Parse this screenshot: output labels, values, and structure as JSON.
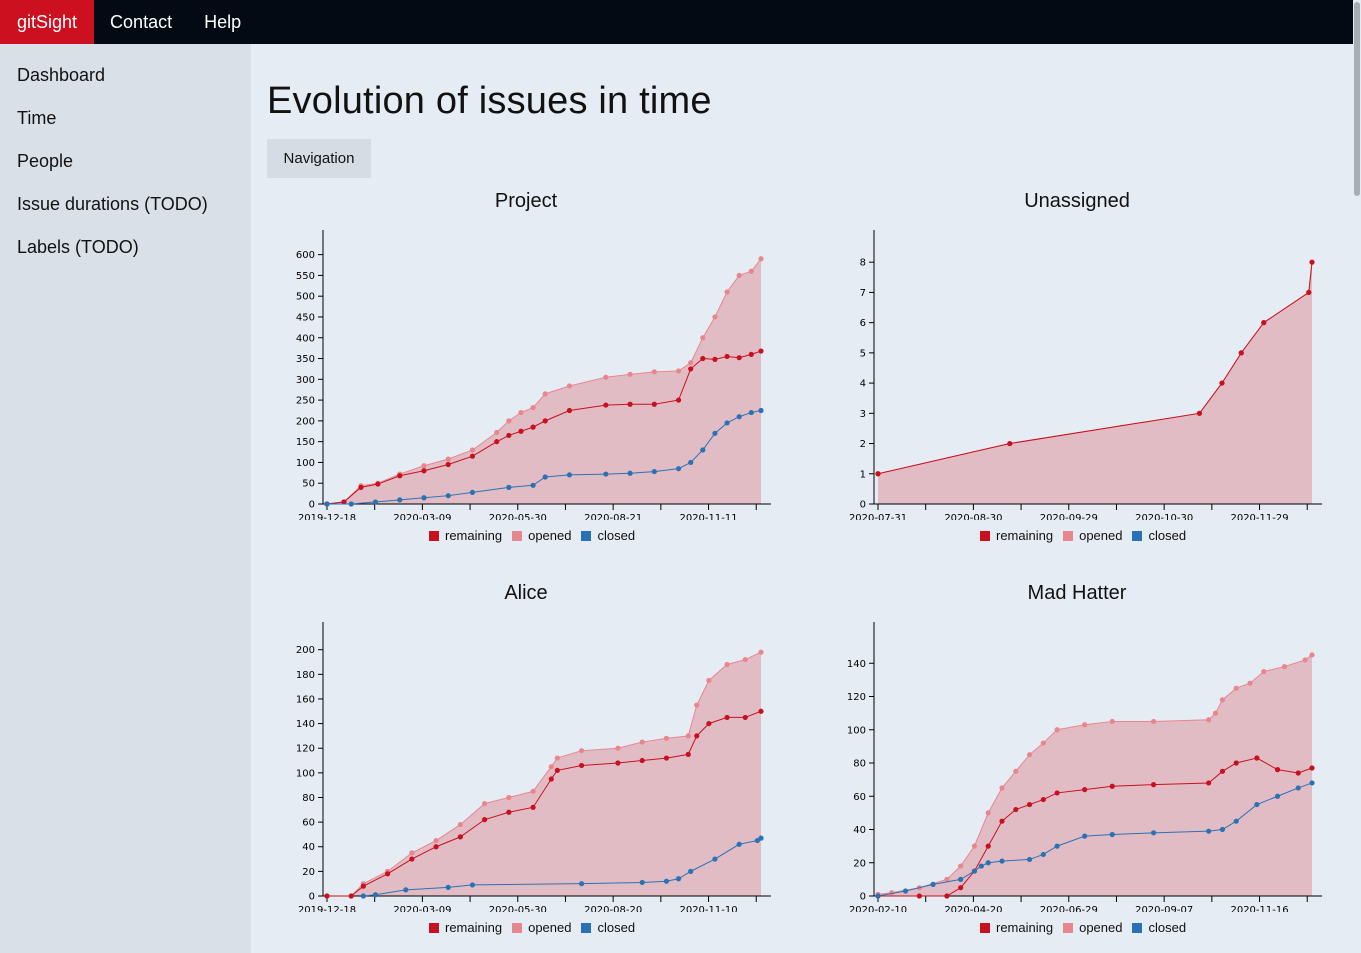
{
  "topbar": {
    "brand": "gitSight",
    "contact": "Contact",
    "help": "Help"
  },
  "sidebar": {
    "items": [
      "Dashboard",
      "Time",
      "People",
      "Issue durations (TODO)",
      "Labels (TODO)"
    ]
  },
  "main": {
    "title": "Evolution of issues in time",
    "navigation_button": "Navigation"
  },
  "colors": {
    "brand": "#cc1020",
    "remaining": "#c8101e",
    "opened": "#e8868e",
    "closed": "#2a72b4",
    "area": "#e2bcc5",
    "topbar": "#030a14"
  },
  "legend": {
    "remaining": "remaining",
    "opened": "opened",
    "closed": "closed"
  },
  "chart_data": [
    {
      "type": "line",
      "title": "Project",
      "x_ticks": [
        "2019-12-18",
        "2020-03-09",
        "2020-05-30",
        "2020-08-21",
        "2020-11-11"
      ],
      "ylim": [
        0,
        640
      ],
      "y_ticks": [
        0,
        50,
        100,
        150,
        200,
        250,
        300,
        350,
        400,
        450,
        500,
        550,
        600
      ],
      "series": [
        {
          "name": "opened",
          "x": [
            0,
            14,
            28,
            42,
            60,
            80,
            100,
            120,
            140,
            150,
            160,
            170,
            180,
            200,
            230,
            250,
            270,
            290,
            300,
            310,
            320,
            330,
            340,
            350,
            358
          ],
          "y": [
            0,
            5,
            44,
            50,
            72,
            92,
            108,
            130,
            172,
            200,
            220,
            232,
            265,
            284,
            305,
            312,
            318,
            320,
            340,
            400,
            450,
            510,
            550,
            560,
            590
          ]
        },
        {
          "name": "remaining",
          "x": [
            0,
            14,
            28,
            42,
            60,
            80,
            100,
            120,
            140,
            150,
            160,
            170,
            180,
            200,
            230,
            250,
            270,
            290,
            300,
            310,
            320,
            330,
            340,
            350,
            358
          ],
          "y": [
            0,
            5,
            40,
            48,
            68,
            80,
            95,
            115,
            150,
            165,
            175,
            185,
            200,
            225,
            238,
            240,
            240,
            250,
            325,
            350,
            348,
            355,
            352,
            360,
            368
          ]
        },
        {
          "name": "closed",
          "x": [
            0,
            20,
            40,
            60,
            80,
            100,
            120,
            150,
            170,
            180,
            200,
            230,
            250,
            270,
            290,
            300,
            310,
            320,
            330,
            340,
            350,
            358
          ],
          "y": [
            0,
            0,
            5,
            10,
            15,
            20,
            28,
            40,
            45,
            65,
            70,
            72,
            74,
            78,
            85,
            100,
            130,
            170,
            195,
            210,
            220,
            225
          ]
        }
      ]
    },
    {
      "type": "line",
      "title": "Unassigned",
      "x_ticks": [
        "2020-07-31",
        "2020-08-30",
        "2020-09-29",
        "2020-10-30",
        "2020-11-29"
      ],
      "ylim": [
        0,
        8.8
      ],
      "y_ticks": [
        0,
        1,
        2,
        3,
        4,
        5,
        6,
        7,
        8
      ],
      "series": [
        {
          "name": "opened",
          "x": [
            0,
            41,
            100,
            107,
            113,
            120,
            134,
            135
          ],
          "y": [
            1,
            2,
            3,
            4,
            5,
            6,
            7,
            8
          ]
        },
        {
          "name": "remaining",
          "x": [
            0,
            41,
            100,
            107,
            113,
            120,
            134,
            135
          ],
          "y": [
            1,
            2,
            3,
            4,
            5,
            6,
            7,
            8
          ]
        },
        {
          "name": "closed",
          "x": [],
          "y": []
        }
      ]
    },
    {
      "type": "line",
      "title": "Alice",
      "x_ticks": [
        "2019-12-18",
        "2020-03-09",
        "2020-05-30",
        "2020-08-20",
        "2020-11-10"
      ],
      "ylim": [
        0,
        216
      ],
      "y_ticks": [
        0,
        20,
        40,
        60,
        80,
        100,
        120,
        140,
        160,
        180,
        200
      ],
      "series": [
        {
          "name": "opened",
          "x": [
            0,
            20,
            30,
            50,
            70,
            90,
            110,
            130,
            150,
            170,
            185,
            190,
            210,
            240,
            260,
            280,
            298,
            305,
            315,
            330,
            345,
            358
          ],
          "y": [
            0,
            0,
            10,
            20,
            35,
            45,
            58,
            75,
            80,
            85,
            105,
            112,
            118,
            120,
            125,
            128,
            130,
            155,
            175,
            188,
            192,
            198
          ]
        },
        {
          "name": "remaining",
          "x": [
            0,
            20,
            30,
            50,
            70,
            90,
            110,
            130,
            150,
            170,
            185,
            190,
            210,
            240,
            260,
            280,
            298,
            305,
            315,
            330,
            345,
            358
          ],
          "y": [
            0,
            0,
            8,
            18,
            30,
            40,
            48,
            62,
            68,
            72,
            95,
            102,
            106,
            108,
            110,
            112,
            115,
            130,
            140,
            145,
            145,
            150
          ]
        },
        {
          "name": "closed",
          "x": [
            30,
            40,
            65,
            100,
            120,
            210,
            260,
            280,
            290,
            300,
            320,
            340,
            355,
            358
          ],
          "y": [
            0,
            1,
            5,
            7,
            9,
            10,
            11,
            12,
            14,
            20,
            30,
            42,
            45,
            47
          ]
        }
      ]
    },
    {
      "type": "line",
      "title": "Mad Hatter",
      "x_ticks": [
        "2020-02-10",
        "2020-04-20",
        "2020-06-29",
        "2020-09-07",
        "2020-11-16"
      ],
      "ylim": [
        0,
        160
      ],
      "y_ticks": [
        0,
        20,
        40,
        60,
        80,
        100,
        120,
        140
      ],
      "series": [
        {
          "name": "opened",
          "x": [
            0,
            10,
            30,
            50,
            60,
            70,
            80,
            90,
            100,
            110,
            120,
            130,
            150,
            170,
            200,
            240,
            245,
            250,
            260,
            270,
            280,
            295,
            310,
            315
          ],
          "y": [
            1,
            2,
            5,
            10,
            18,
            30,
            50,
            65,
            75,
            85,
            92,
            100,
            103,
            105,
            105,
            106,
            110,
            118,
            125,
            128,
            135,
            138,
            142,
            145
          ]
        },
        {
          "name": "remaining",
          "x": [
            0,
            30,
            50,
            60,
            70,
            80,
            90,
            100,
            110,
            120,
            130,
            150,
            170,
            200,
            240,
            250,
            260,
            275,
            290,
            305,
            315
          ],
          "y": [
            0,
            0,
            0,
            5,
            15,
            30,
            45,
            52,
            55,
            58,
            62,
            64,
            66,
            67,
            68,
            75,
            80,
            83,
            76,
            74,
            77
          ]
        },
        {
          "name": "closed",
          "x": [
            0,
            20,
            40,
            60,
            70,
            75,
            80,
            90,
            110,
            120,
            130,
            150,
            170,
            200,
            240,
            250,
            260,
            275,
            290,
            305,
            315
          ],
          "y": [
            0,
            3,
            7,
            10,
            15,
            18,
            20,
            21,
            22,
            25,
            30,
            36,
            37,
            38,
            39,
            40,
            45,
            55,
            60,
            65,
            68
          ]
        }
      ]
    }
  ]
}
